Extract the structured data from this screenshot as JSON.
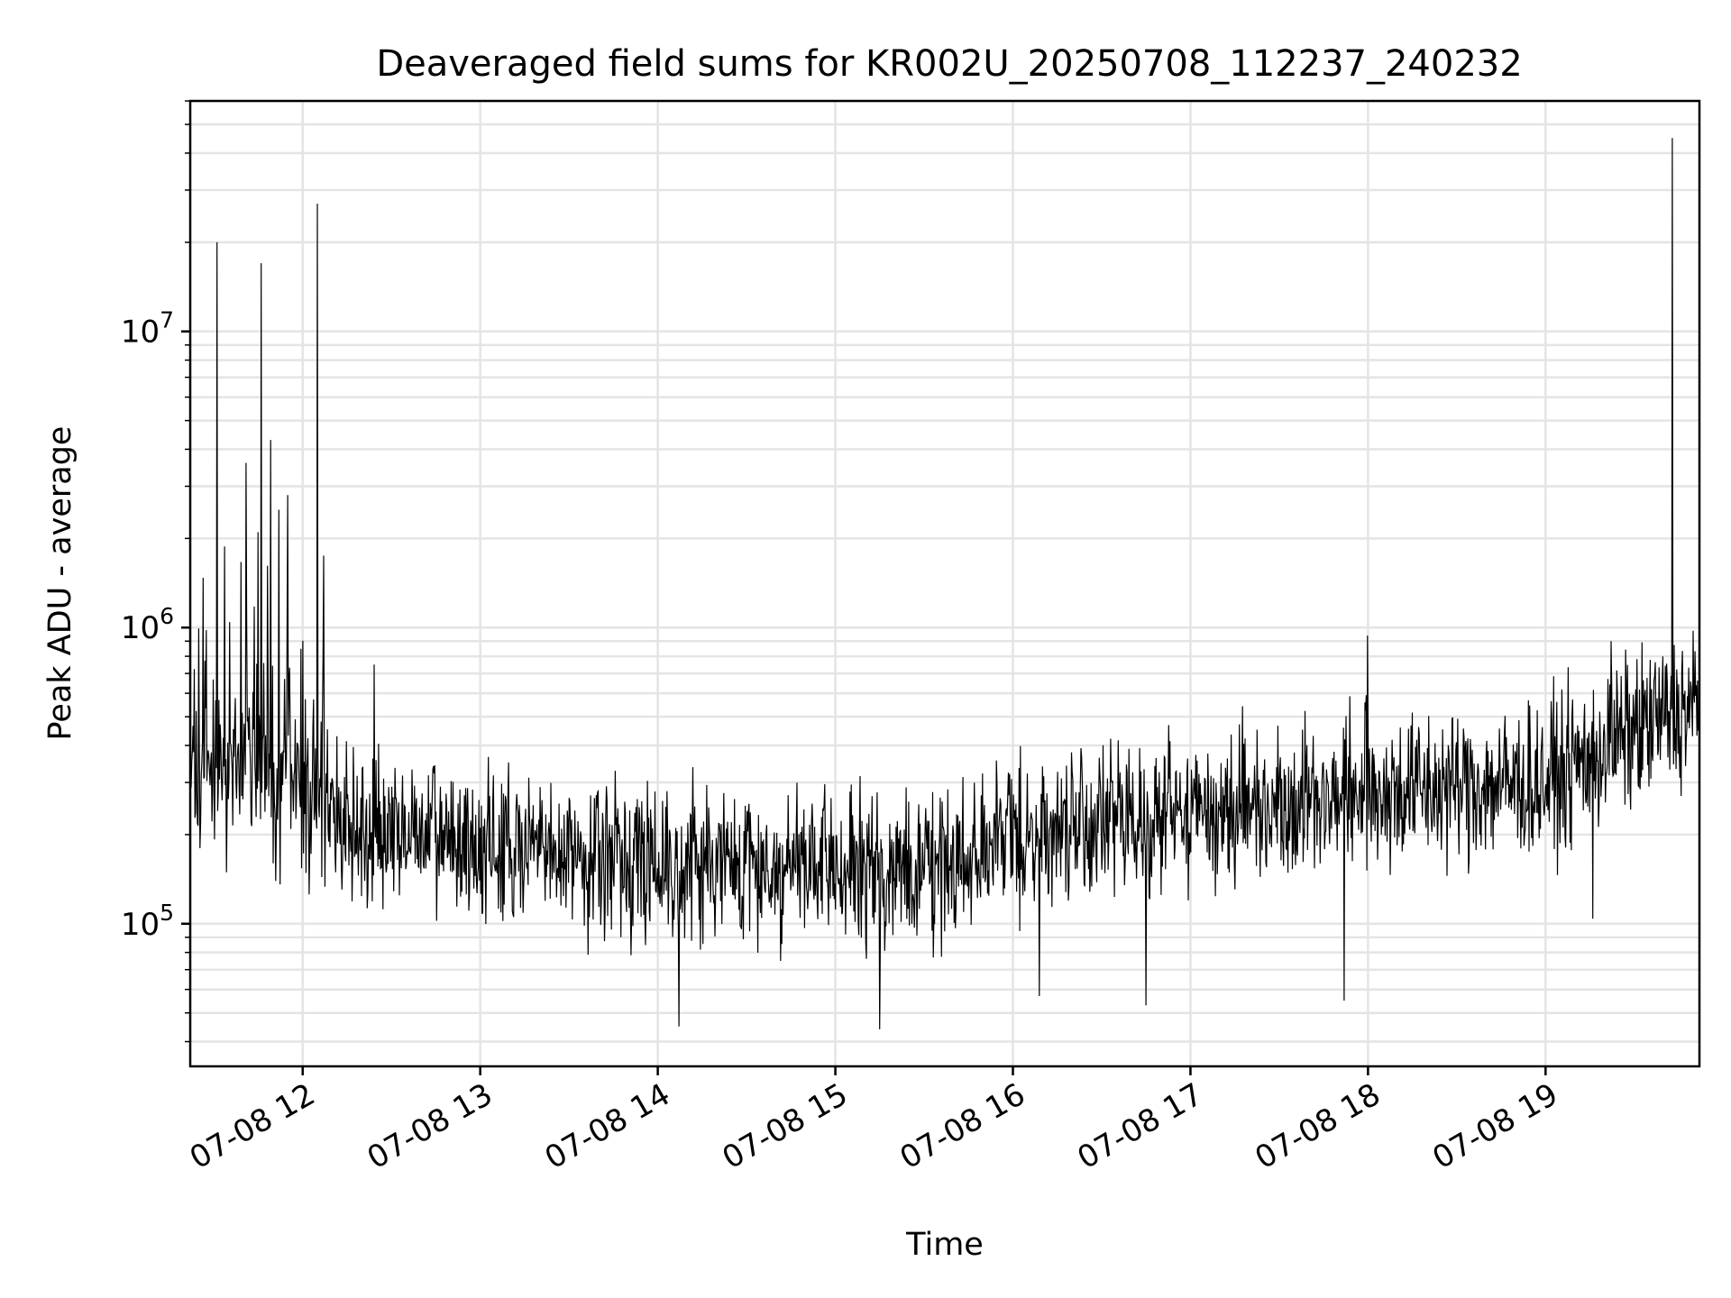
{
  "chart_data": {
    "type": "line",
    "title": "Deaveraged field sums for KR002U_20250708_112237_240232",
    "xlabel": "Time",
    "ylabel": "Peak ADU - average",
    "yscale": "log",
    "ylim": [
      33000,
      60000000
    ],
    "xlim": [
      "07-08 11:22",
      "07-08 19:52"
    ],
    "grid": true,
    "line_color": "#000000",
    "x_ticks": [
      "07-08 12",
      "07-08 13",
      "07-08 14",
      "07-08 15",
      "07-08 16",
      "07-08 17",
      "07-08 18",
      "07-08 19"
    ],
    "x_tick_times": [
      "07-08 12:00",
      "07-08 13:00",
      "07-08 14:00",
      "07-08 15:00",
      "07-08 16:00",
      "07-08 17:00",
      "07-08 18:00",
      "07-08 19:00"
    ],
    "y_ticks": [
      {
        "base": "10",
        "exp": "5",
        "value": 100000
      },
      {
        "base": "10",
        "exp": "6",
        "value": 1000000
      },
      {
        "base": "10",
        "exp": "7",
        "value": 10000000
      }
    ],
    "trend": [
      {
        "t": "07-08 11:22",
        "y": 300000
      },
      {
        "t": "07-08 11:45",
        "y": 330000
      },
      {
        "t": "07-08 12:15",
        "y": 220000
      },
      {
        "t": "07-08 13:00",
        "y": 180000
      },
      {
        "t": "07-08 14:00",
        "y": 165000
      },
      {
        "t": "07-08 15:00",
        "y": 150000
      },
      {
        "t": "07-08 15:30",
        "y": 150000
      },
      {
        "t": "07-08 16:00",
        "y": 200000
      },
      {
        "t": "07-08 17:00",
        "y": 240000
      },
      {
        "t": "07-08 18:00",
        "y": 280000
      },
      {
        "t": "07-08 19:00",
        "y": 300000
      },
      {
        "t": "07-08 19:30",
        "y": 450000
      },
      {
        "t": "07-08 19:52",
        "y": 550000
      }
    ],
    "spikes": [
      {
        "t": "07-08 11:31",
        "y": 20000000
      },
      {
        "t": "07-08 11:41",
        "y": 3600000
      },
      {
        "t": "07-08 11:45",
        "y": 2100000
      },
      {
        "t": "07-08 11:46",
        "y": 17000000
      },
      {
        "t": "07-08 11:49",
        "y": 4300000
      },
      {
        "t": "07-08 11:52",
        "y": 2500000
      },
      {
        "t": "07-08 11:55",
        "y": 2800000
      },
      {
        "t": "07-08 12:05",
        "y": 27000000
      },
      {
        "t": "07-08 12:07",
        "y": 1750000
      },
      {
        "t": "07-08 12:24",
        "y": 750000
      },
      {
        "t": "07-08 14:07",
        "y": 45000
      },
      {
        "t": "07-08 15:15",
        "y": 44000
      },
      {
        "t": "07-08 16:09",
        "y": 57000
      },
      {
        "t": "07-08 16:45",
        "y": 53000
      },
      {
        "t": "07-08 17:52",
        "y": 55000
      },
      {
        "t": "07-08 18:00",
        "y": 940000
      },
      {
        "t": "07-08 19:16",
        "y": 104000
      },
      {
        "t": "07-08 19:22",
        "y": 900000
      },
      {
        "t": "07-08 19:43",
        "y": 45000000
      }
    ],
    "noise_amplitude_decades": 0.24
  }
}
